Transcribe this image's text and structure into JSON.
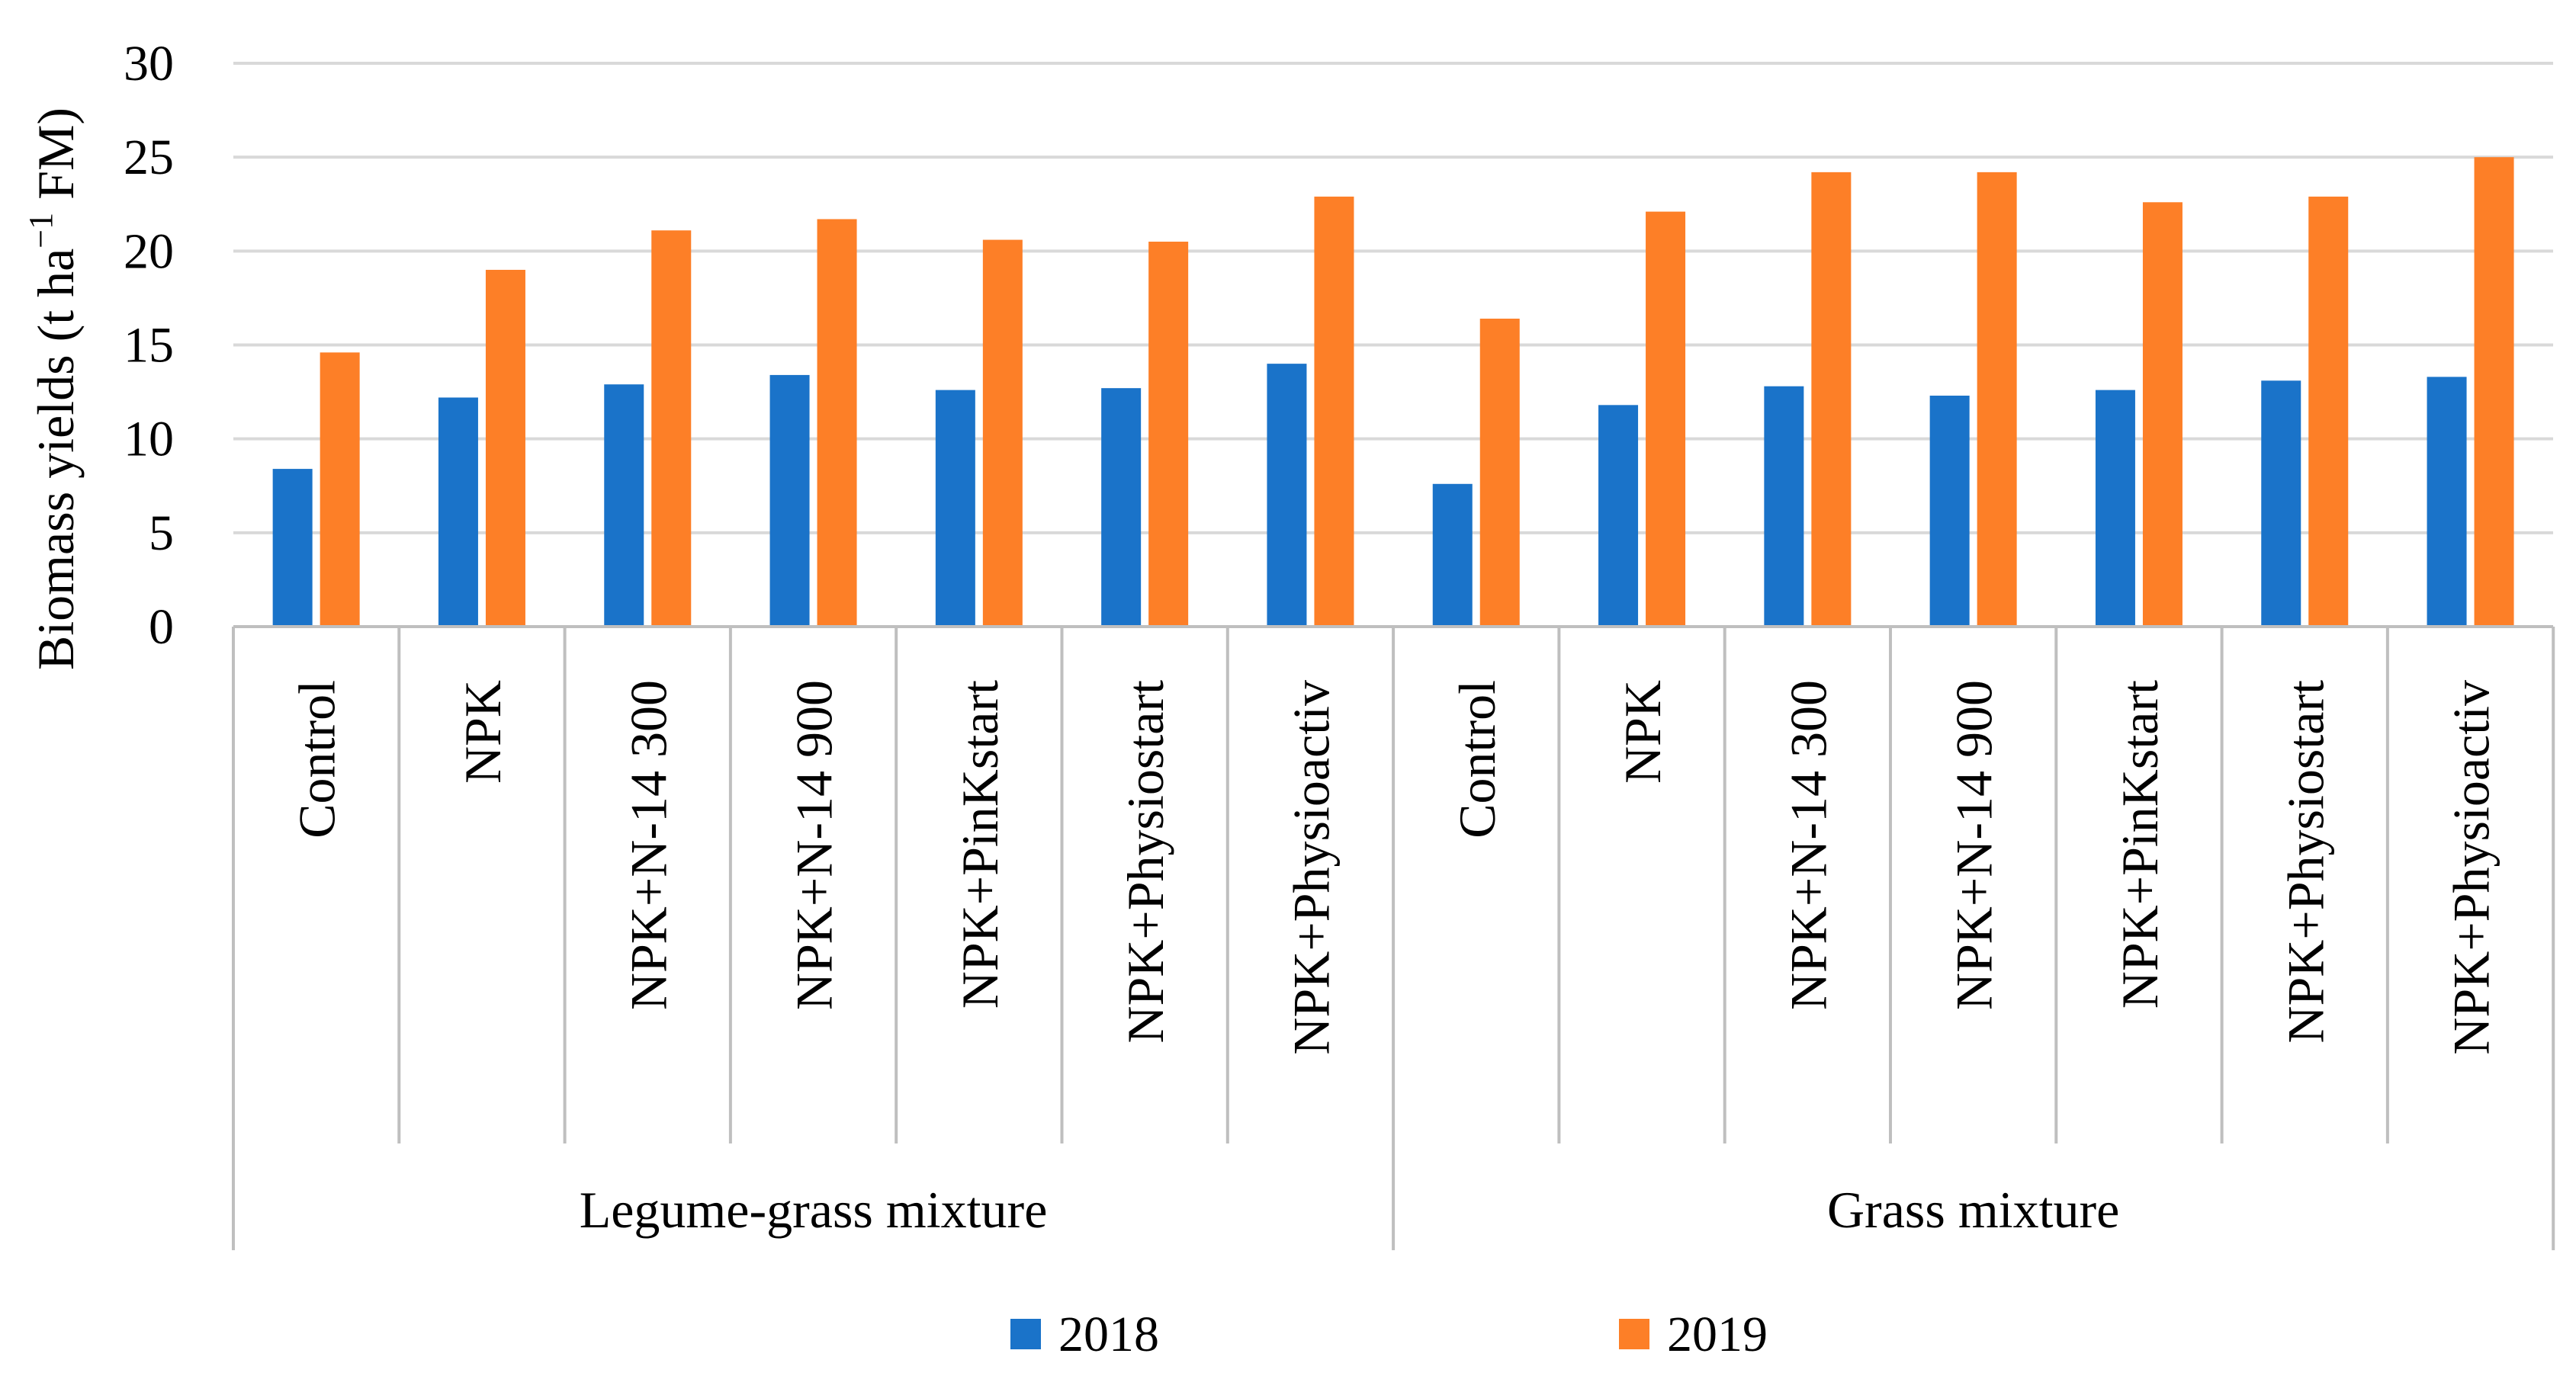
{
  "chart_data": {
    "type": "bar",
    "title": "",
    "ylabel": {
      "prefix": "Biomass yields (t ha",
      "superscript": "−1",
      "suffix": " FM)"
    },
    "ylim": [
      0,
      30
    ],
    "yticks": [
      "0",
      "5",
      "10",
      "15",
      "20",
      "25",
      "30"
    ],
    "grid": true,
    "groups": [
      {
        "label": "Legume-grass mixture",
        "categories": [
          "Control",
          "NPK",
          "NPK+N-14 300",
          "NPK+N-14 900",
          "NPK+PinKstart",
          "NPK+Physiostart",
          "NPK+Physioactiv"
        ]
      },
      {
        "label": "Grass mixture",
        "categories": [
          "Control",
          "NPK",
          "NPK+N-14 300",
          "NPK+N-14 900",
          "NPK+PinKstart",
          "NPK+Physiostart",
          "NPK+Physioactiv"
        ]
      }
    ],
    "series": [
      {
        "name": "2018",
        "color": "#1a73c9",
        "values": [
          8.4,
          12.2,
          12.9,
          13.4,
          12.6,
          12.7,
          14.0,
          7.6,
          11.8,
          12.8,
          12.3,
          12.6,
          13.1,
          13.3
        ]
      },
      {
        "name": "2019",
        "color": "#fd7f27",
        "values": [
          14.6,
          19.0,
          21.1,
          21.7,
          20.6,
          20.5,
          22.9,
          16.4,
          22.1,
          24.2,
          24.2,
          22.6,
          22.9,
          25.0
        ]
      }
    ],
    "legend": "bottom"
  },
  "colors": {
    "grid": "#d9d9d9",
    "axis": "#bfbfbf"
  }
}
